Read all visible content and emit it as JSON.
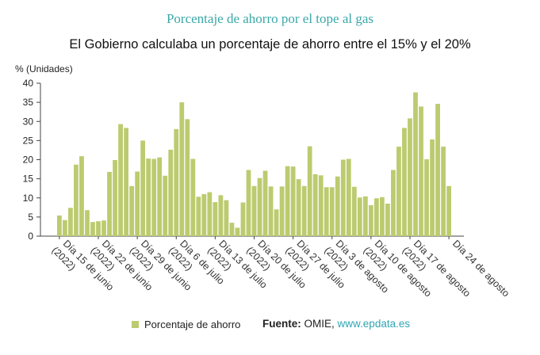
{
  "title": "Porcentaje de ahorro por el tope al gas",
  "subtitle": "El Gobierno calculaba un porcentaje de ahorro entre el 15% y el 20%",
  "legend_label": "Porcentaje de ahorro",
  "source": {
    "label": "Fuente:",
    "text": "OMIE,",
    "link": "www.epdata.es"
  },
  "colors": {
    "bar": "#bccb6f",
    "title": "#3aa7a8",
    "link": "#2fa6b4",
    "axis": "#444444"
  },
  "chart_data": {
    "type": "bar",
    "ylabel": "% (Unidades)",
    "ylim": [
      0,
      40
    ],
    "yticks": [
      0,
      5,
      10,
      15,
      20,
      25,
      30,
      35,
      40
    ],
    "grid": false,
    "x_tick_labels": [
      "Día 15 de junio (2022)",
      "Día 22 de junio (2022)",
      "Día 29 de junio (2022)",
      "Día 6 de julio (2022)",
      "Día 13 de julio (2022)",
      "Día 20 de julio (2022)",
      "Día 27 de julio (2022)",
      "Día 3 de agosto (2022)",
      "Día 10 de agosto (2022)",
      "Día 17 de agosto (2022)",
      "Día 24 de agosto"
    ],
    "series": [
      {
        "name": "Porcentaje de ahorro",
        "values": [
          5.4,
          4.2,
          7.4,
          18.7,
          20.9,
          6.8,
          3.7,
          3.9,
          4.1,
          16.8,
          19.9,
          29.3,
          28.3,
          13.1,
          16.9,
          25.0,
          20.3,
          20.2,
          20.6,
          15.8,
          22.6,
          28.0,
          35.0,
          30.6,
          20.2,
          10.3,
          11.0,
          11.5,
          8.9,
          10.7,
          9.4,
          3.5,
          2.2,
          8.8,
          17.3,
          13.1,
          15.2,
          17.1,
          13.0,
          7.0,
          13.0,
          18.3,
          18.2,
          14.9,
          13.1,
          23.5,
          16.2,
          15.9,
          12.8,
          12.8,
          15.6,
          20.0,
          20.2,
          12.9,
          10.1,
          10.4,
          8.1,
          9.9,
          10.2,
          8.5,
          17.3,
          23.4,
          28.3,
          30.8,
          37.6,
          33.9,
          20.1,
          25.3,
          34.6,
          23.4,
          13.1
        ]
      }
    ]
  }
}
